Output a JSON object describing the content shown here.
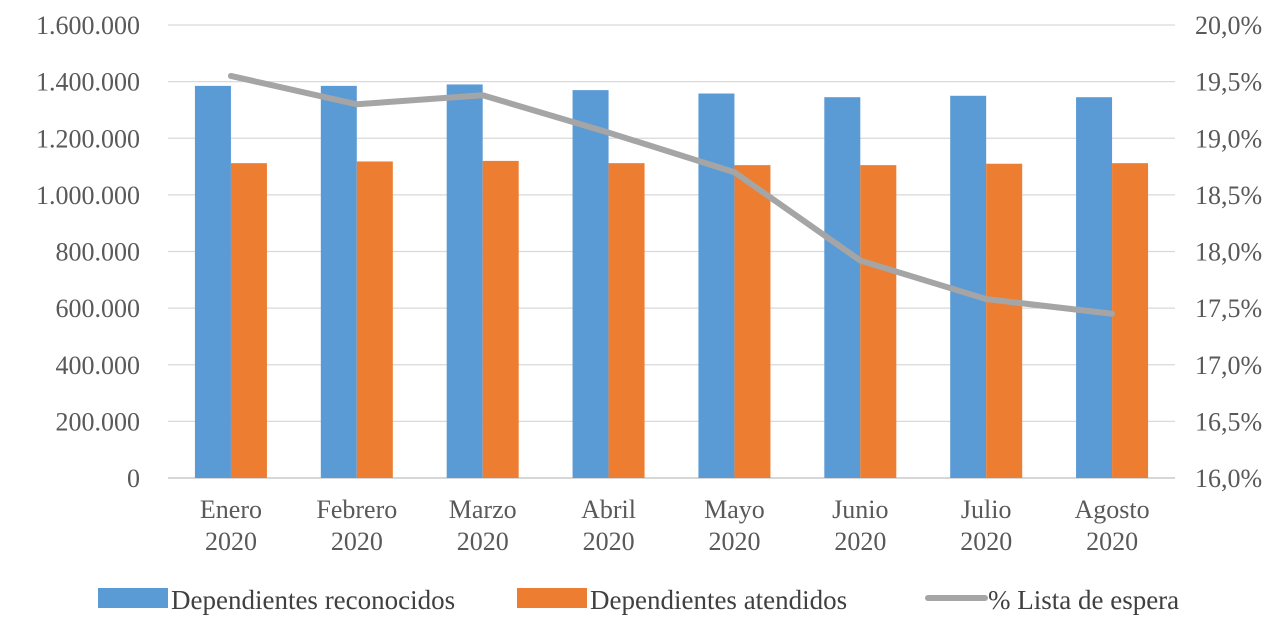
{
  "chart_data": {
    "type": "bar",
    "categories": [
      [
        "Enero",
        "2020"
      ],
      [
        "Febrero",
        "2020"
      ],
      [
        "Marzo",
        "2020"
      ],
      [
        "Abril",
        "2020"
      ],
      [
        "Mayo",
        "2020"
      ],
      [
        "Junio",
        "2020"
      ],
      [
        "Julio",
        "2020"
      ],
      [
        "Agosto",
        "2020"
      ]
    ],
    "series": [
      {
        "name": "Dependientes reconocidos",
        "type": "bar",
        "axis": "left",
        "color": "#5B9BD5",
        "values": [
          1385000,
          1385000,
          1390000,
          1370000,
          1358000,
          1345000,
          1350000,
          1345000
        ]
      },
      {
        "name": "Dependientes atendidos",
        "type": "bar",
        "axis": "left",
        "color": "#ED7D31",
        "values": [
          1112000,
          1118000,
          1120000,
          1112000,
          1105000,
          1105000,
          1110000,
          1112000
        ]
      },
      {
        "name": "% Lista de espera",
        "type": "line",
        "axis": "right",
        "color": "#A5A5A5",
        "values": [
          19.55,
          19.3,
          19.38,
          19.05,
          18.7,
          17.92,
          17.58,
          17.45
        ]
      }
    ],
    "y_left": {
      "min": 0,
      "max": 1600000,
      "ticks": [
        "0",
        "200.000",
        "400.000",
        "600.000",
        "800.000",
        "1.000.000",
        "1.200.000",
        "1.400.000",
        "1.600.000"
      ]
    },
    "y_right": {
      "min": 16.0,
      "max": 20.0,
      "ticks": [
        "16,0%",
        "16,5%",
        "17,0%",
        "17,5%",
        "18,0%",
        "18,5%",
        "19,0%",
        "19,5%",
        "20,0%"
      ]
    },
    "grid": true,
    "legend_position": "bottom"
  }
}
